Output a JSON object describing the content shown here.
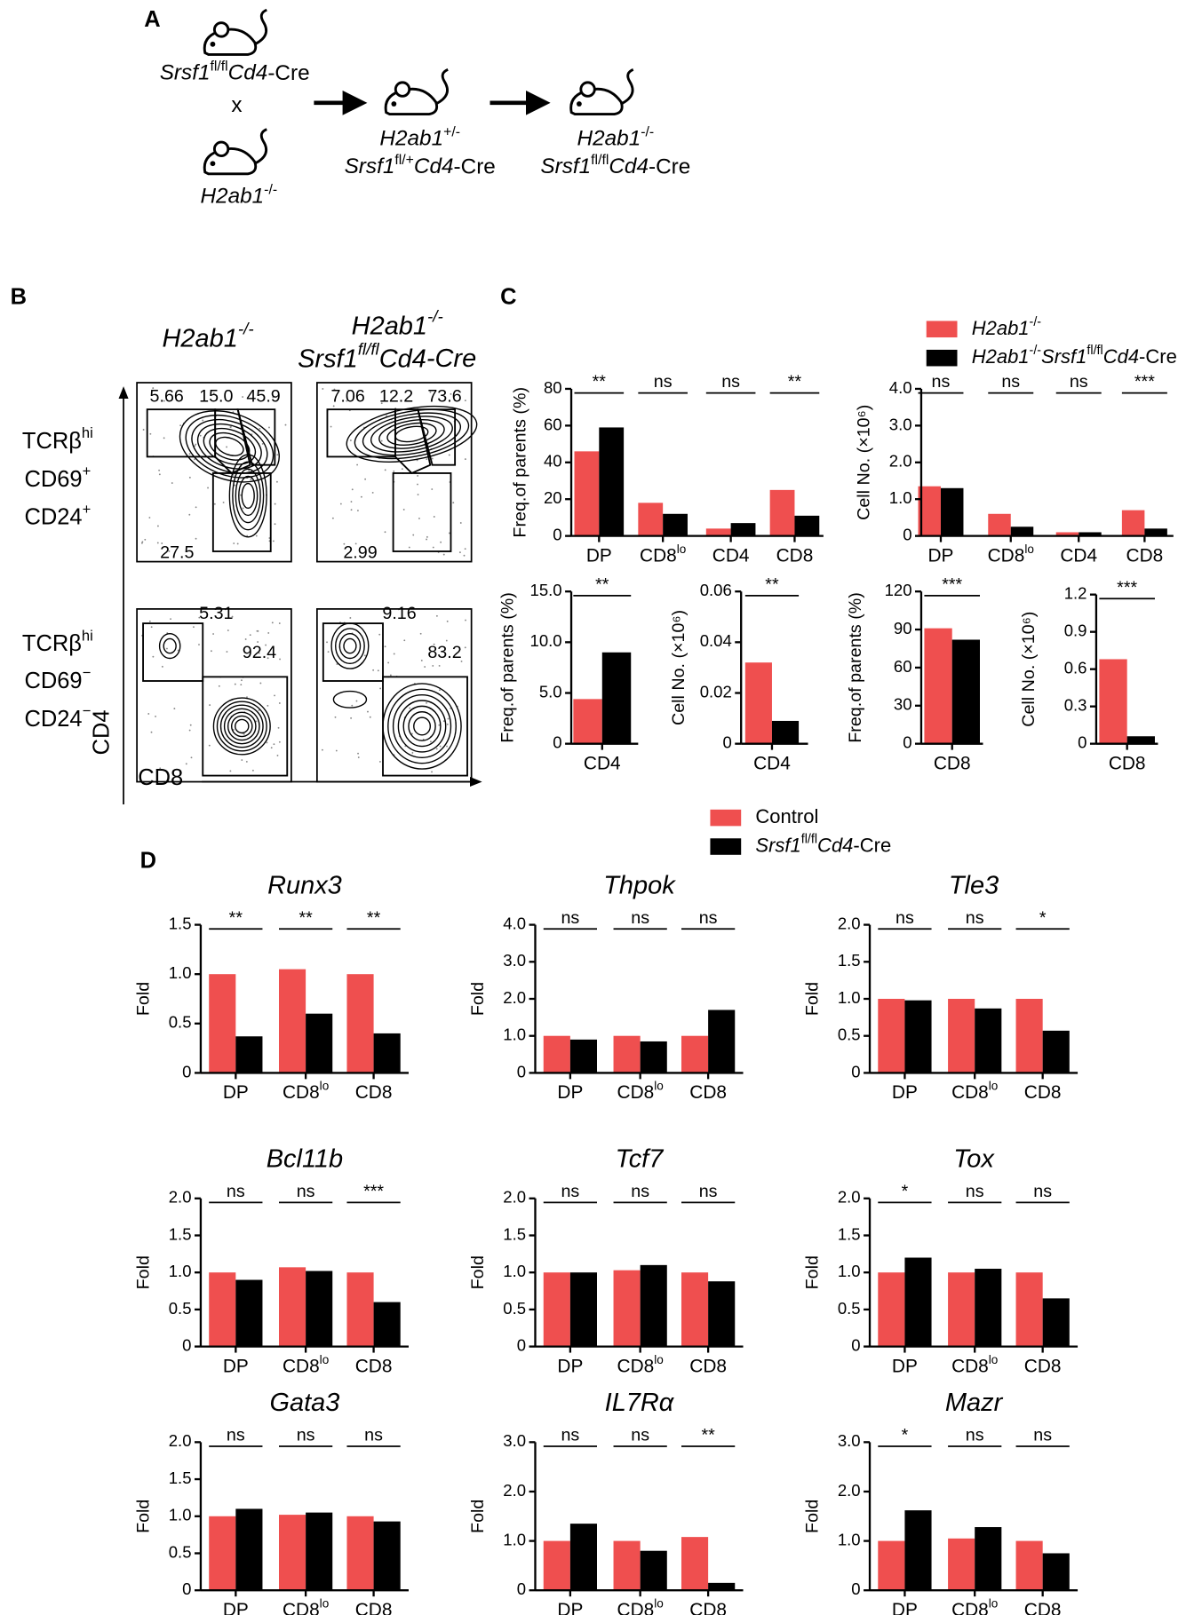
{
  "panel_labels": [
    "A",
    "B",
    "C",
    "D"
  ],
  "breeding": {
    "parent_1": "Srsf1fl/flCd4-Cre",
    "cross": "x",
    "parent_2": "H2ab1-/-",
    "f1": [
      "H2ab1+/-",
      "Srsf1fl/+Cd4-Cre"
    ],
    "f2": [
      "H2ab1-/-",
      "Srsf1fl/flCd4-Cre"
    ]
  },
  "flow": {
    "column_1": "H2ab1-/-",
    "column_2": [
      "H2ab1-/-",
      "Srsf1fl/flCd4-Cre"
    ],
    "rows": [
      [
        "TCRβhi",
        "CD69+",
        "CD24+"
      ],
      [
        "TCRβhi",
        "CD69−",
        "CD24−"
      ]
    ],
    "y_axis": "CD4",
    "x_axis": "CD8",
    "plots": [
      [
        "5.66",
        "15.0",
        "45.9",
        "27.5"
      ],
      [
        "7.06",
        "12.2",
        "73.6",
        "2.99"
      ],
      [
        "5.31",
        "92.4"
      ],
      [
        "9.16",
        "83.2"
      ]
    ]
  },
  "chart_data": [
    {
      "type": "bar",
      "y_label": "Freq.of parents (%)",
      "categories": [
        "DP",
        "CD8lo",
        "CD4",
        "CD8"
      ],
      "series": [
        {
          "name": "H2ab1-/-",
          "color": "#ef4f4f",
          "values": [
            46,
            18,
            4,
            25
          ]
        },
        {
          "name": "H2ab1-/-Srsf1fl/flCd4-Cre",
          "color": "#000000",
          "values": [
            59,
            12,
            7,
            11
          ]
        }
      ],
      "ylim": [
        0,
        80
      ],
      "yticks": [
        0,
        20,
        40,
        60,
        80
      ],
      "significance": [
        "**",
        "ns",
        "ns",
        "**"
      ]
    },
    {
      "type": "bar",
      "y_label": "Cell No. (×10⁶)",
      "categories": [
        "DP",
        "CD8lo",
        "CD4",
        "CD8"
      ],
      "series": [
        {
          "color": "#ef4f4f",
          "values": [
            1.35,
            0.6,
            0.1,
            0.7
          ]
        },
        {
          "color": "#000000",
          "values": [
            1.3,
            0.25,
            0.1,
            0.2
          ]
        }
      ],
      "ylim": [
        0,
        4
      ],
      "yticks": [
        0,
        {
          "value": 1,
          "label": "1.0"
        },
        {
          "value": 2,
          "label": "2.0"
        },
        {
          "value": 3,
          "label": "3.0"
        },
        {
          "value": 4,
          "label": "4.0"
        }
      ],
      "significance": [
        "ns",
        "ns",
        "ns",
        "***"
      ]
    },
    {
      "type": "bar",
      "y_label": "Freq.of parents (%)",
      "categories": [
        "CD4"
      ],
      "series": [
        {
          "color": "#ef4f4f",
          "values": [
            4.4
          ]
        },
        {
          "color": "#000000",
          "values": [
            9.0
          ]
        }
      ],
      "ylim": [
        0,
        15
      ],
      "yticks": [
        0,
        {
          "value": 5,
          "label": "5.0"
        },
        {
          "value": 10,
          "label": "10.0"
        },
        {
          "value": 15,
          "label": "15.0"
        }
      ],
      "significance": [
        "**"
      ]
    },
    {
      "type": "bar",
      "y_label": "Cell No. (×10⁶)",
      "categories": [
        "CD4"
      ],
      "series": [
        {
          "color": "#ef4f4f",
          "values": [
            0.032
          ]
        },
        {
          "color": "#000000",
          "values": [
            0.009
          ]
        }
      ],
      "ylim": [
        0,
        0.06
      ],
      "yticks": [
        0,
        0.02,
        0.04,
        0.06
      ],
      "significance": [
        "**"
      ]
    },
    {
      "type": "bar",
      "y_label": "Freq.of parents (%)",
      "categories": [
        "CD8"
      ],
      "series": [
        {
          "color": "#ef4f4f",
          "values": [
            91
          ]
        },
        {
          "color": "#000000",
          "values": [
            82
          ]
        }
      ],
      "ylim": [
        0,
        120
      ],
      "yticks": [
        0,
        30,
        60,
        90,
        120
      ],
      "significance": [
        "***"
      ]
    },
    {
      "type": "bar",
      "y_label": "Cell No. (×10⁶)",
      "categories": [
        "CD8"
      ],
      "series": [
        {
          "color": "#ef4f4f",
          "values": [
            0.68
          ]
        },
        {
          "color": "#000000",
          "values": [
            0.06
          ]
        }
      ],
      "ylim": [
        0,
        1.2
      ],
      "yticks": [
        0,
        0.3,
        0.6,
        0.9,
        1.2
      ],
      "significance": [
        "***"
      ]
    },
    {
      "type": "bar",
      "title": "Runx3",
      "y_label": "Fold",
      "categories": [
        "DP",
        "CD8lo",
        "CD8"
      ],
      "series": [
        {
          "name": "Control",
          "color": "#ef4f4f",
          "values": [
            1.0,
            1.05,
            1.0
          ]
        },
        {
          "name": "Srsf1fl/flCd4-Cre",
          "color": "#000000",
          "values": [
            0.37,
            0.6,
            0.4
          ]
        }
      ],
      "ylim": [
        0,
        1.5
      ],
      "yticks": [
        0,
        0.5,
        {
          "value": 1,
          "label": "1.0"
        },
        1.5
      ],
      "significance": [
        "**",
        "**",
        "**"
      ]
    },
    {
      "type": "bar",
      "title": "Thpok",
      "y_label": "Fold",
      "categories": [
        "DP",
        "CD8lo",
        "CD8"
      ],
      "series": [
        {
          "color": "#ef4f4f",
          "values": [
            1.0,
            1.0,
            1.0
          ]
        },
        {
          "color": "#000000",
          "values": [
            0.9,
            0.85,
            1.7
          ]
        }
      ],
      "ylim": [
        0,
        4
      ],
      "yticks": [
        0,
        {
          "value": 1,
          "label": "1.0"
        },
        {
          "value": 2,
          "label": "2.0"
        },
        {
          "value": 3,
          "label": "3.0"
        },
        {
          "value": 4,
          "label": "4.0"
        }
      ],
      "significance": [
        "ns",
        "ns",
        "ns"
      ]
    },
    {
      "type": "bar",
      "title": "Tle3",
      "y_label": "Fold",
      "categories": [
        "DP",
        "CD8lo",
        "CD8"
      ],
      "series": [
        {
          "color": "#ef4f4f",
          "values": [
            1.0,
            1.0,
            1.0
          ]
        },
        {
          "color": "#000000",
          "values": [
            0.98,
            0.87,
            0.57
          ]
        }
      ],
      "ylim": [
        0,
        2
      ],
      "yticks": [
        0,
        0.5,
        {
          "value": 1,
          "label": "1.0"
        },
        1.5,
        {
          "value": 2,
          "label": "2.0"
        }
      ],
      "significance": [
        "ns",
        "ns",
        "*"
      ]
    },
    {
      "type": "bar",
      "title": "Bcl11b",
      "y_label": "Fold",
      "categories": [
        "DP",
        "CD8lo",
        "CD8"
      ],
      "series": [
        {
          "color": "#ef4f4f",
          "values": [
            1.0,
            1.07,
            1.0
          ]
        },
        {
          "color": "#000000",
          "values": [
            0.9,
            1.02,
            0.6
          ]
        }
      ],
      "ylim": [
        0,
        2
      ],
      "yticks": [
        0,
        0.5,
        {
          "value": 1,
          "label": "1.0"
        },
        1.5,
        {
          "value": 2,
          "label": "2.0"
        }
      ],
      "significance": [
        "ns",
        "ns",
        "***"
      ]
    },
    {
      "type": "bar",
      "title": "Tcf7",
      "y_label": "Fold",
      "categories": [
        "DP",
        "CD8lo",
        "CD8"
      ],
      "series": [
        {
          "color": "#ef4f4f",
          "values": [
            1.0,
            1.03,
            1.0
          ]
        },
        {
          "color": "#000000",
          "values": [
            1.0,
            1.1,
            0.88
          ]
        }
      ],
      "ylim": [
        0,
        2
      ],
      "yticks": [
        0,
        0.5,
        {
          "value": 1,
          "label": "1.0"
        },
        1.5,
        {
          "value": 2,
          "label": "2.0"
        }
      ],
      "significance": [
        "ns",
        "ns",
        "ns"
      ]
    },
    {
      "type": "bar",
      "title": "Tox",
      "y_label": "Fold",
      "categories": [
        "DP",
        "CD8lo",
        "CD8"
      ],
      "series": [
        {
          "color": "#ef4f4f",
          "values": [
            1.0,
            1.0,
            1.0
          ]
        },
        {
          "color": "#000000",
          "values": [
            1.2,
            1.05,
            0.65
          ]
        }
      ],
      "ylim": [
        0,
        2
      ],
      "yticks": [
        0,
        0.5,
        {
          "value": 1,
          "label": "1.0"
        },
        1.5,
        {
          "value": 2,
          "label": "2.0"
        }
      ],
      "significance": [
        "*",
        "ns",
        "ns"
      ]
    },
    {
      "type": "bar",
      "title": "Gata3",
      "y_label": "Fold",
      "categories": [
        "DP",
        "CD8lo",
        "CD8"
      ],
      "series": [
        {
          "color": "#ef4f4f",
          "values": [
            1.0,
            1.02,
            1.0
          ]
        },
        {
          "color": "#000000",
          "values": [
            1.1,
            1.05,
            0.93
          ]
        }
      ],
      "ylim": [
        0,
        2
      ],
      "yticks": [
        0,
        0.5,
        {
          "value": 1,
          "label": "1.0"
        },
        1.5,
        {
          "value": 2,
          "label": "2.0"
        }
      ],
      "significance": [
        "ns",
        "ns",
        "ns"
      ]
    },
    {
      "type": "bar",
      "title": "IL7Rα",
      "y_label": "Fold",
      "categories": [
        "DP",
        "CD8lo",
        "CD8"
      ],
      "series": [
        {
          "color": "#ef4f4f",
          "values": [
            1.0,
            1.0,
            1.08
          ]
        },
        {
          "color": "#000000",
          "values": [
            1.35,
            0.8,
            0.15
          ]
        }
      ],
      "ylim": [
        0,
        3
      ],
      "yticks": [
        0,
        {
          "value": 1,
          "label": "1.0"
        },
        {
          "value": 2,
          "label": "2.0"
        },
        {
          "value": 3,
          "label": "3.0"
        }
      ],
      "significance": [
        "ns",
        "ns",
        "**"
      ]
    },
    {
      "type": "bar",
      "title": "Mazr",
      "y_label": "Fold",
      "categories": [
        "DP",
        "CD8lo",
        "CD8"
      ],
      "series": [
        {
          "color": "#ef4f4f",
          "values": [
            1.0,
            1.05,
            1.0
          ]
        },
        {
          "color": "#000000",
          "values": [
            1.62,
            1.28,
            0.75
          ]
        }
      ],
      "ylim": [
        0,
        3
      ],
      "yticks": [
        0,
        {
          "value": 1,
          "label": "1.0"
        },
        {
          "value": 2,
          "label": "2.0"
        },
        {
          "value": 3,
          "label": "3.0"
        }
      ],
      "significance": [
        "*",
        "ns",
        "ns"
      ]
    }
  ]
}
